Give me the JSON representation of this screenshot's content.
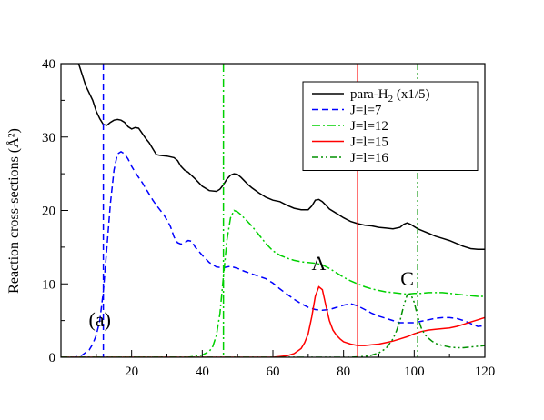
{
  "chart_data": {
    "type": "line",
    "title": "",
    "xlabel": "",
    "ylabel": "Reaction cross-sections (Å²)",
    "xlim": [
      0,
      120
    ],
    "ylim": [
      0,
      40
    ],
    "xticks": [
      20,
      40,
      60,
      80,
      100,
      120
    ],
    "yticks": [
      0,
      10,
      20,
      30,
      40
    ],
    "grid": false,
    "legend_position": "top-right",
    "annotations": [
      {
        "text": "A",
        "x": 73,
        "y": 11.9
      },
      {
        "text": "C",
        "x": 98,
        "y": 9.8
      },
      {
        "text": "(a)",
        "x": 11,
        "y": 4.2
      }
    ],
    "vertical_lines": [
      {
        "series": "J=l=7",
        "x": 12
      },
      {
        "series": "J=l=12",
        "x": 46
      },
      {
        "series": "J=l=15",
        "x": 84
      },
      {
        "series": "J=l=16",
        "x": 101
      }
    ],
    "series": [
      {
        "name": "para-H₂ (x1/5)",
        "legend_main": "para-H",
        "legend_sub": "2",
        "legend_suffix": " (x1/5)",
        "color": "#000000",
        "dash": "",
        "x": [
          5,
          7,
          9,
          10,
          11,
          12,
          13,
          14,
          15,
          16,
          17,
          18,
          19,
          20,
          21,
          22,
          23,
          24,
          25,
          26,
          27,
          28,
          30,
          32,
          33,
          34,
          35,
          36,
          38,
          40,
          42,
          44,
          45,
          46,
          47,
          48,
          49,
          50,
          51,
          52,
          53,
          54,
          56,
          58,
          60,
          62,
          64,
          66,
          68,
          70,
          71,
          72,
          73,
          74,
          75,
          76,
          78,
          80,
          82,
          84,
          86,
          88,
          90,
          92,
          94,
          96,
          97,
          98,
          99,
          100,
          101,
          102,
          104,
          106,
          108,
          110,
          112,
          114,
          116,
          118,
          120
        ],
        "y": [
          40,
          37,
          35,
          33.5,
          32.5,
          31.7,
          31.6,
          32,
          32.3,
          32.4,
          32.3,
          32,
          31.4,
          31.1,
          31.3,
          31.2,
          30.5,
          29.8,
          29.2,
          28.4,
          27.6,
          27.5,
          27.4,
          27.2,
          26.8,
          26,
          25.5,
          25.2,
          24.3,
          23.3,
          22.7,
          22.6,
          22.9,
          23.5,
          24.3,
          24.8,
          25,
          24.9,
          24.5,
          24,
          23.5,
          23.1,
          22.4,
          21.8,
          21.4,
          21.2,
          20.7,
          20.3,
          20.1,
          20.1,
          20.6,
          21.4,
          21.5,
          21.2,
          20.7,
          20.2,
          19.6,
          19,
          18.5,
          18.2,
          18,
          17.9,
          17.7,
          17.6,
          17.5,
          17.7,
          18.1,
          18.3,
          18.1,
          17.8,
          17.5,
          17.3,
          16.9,
          16.5,
          16.2,
          15.9,
          15.5,
          15.1,
          14.8,
          14.7,
          14.7
        ]
      },
      {
        "name": "J=l=7",
        "color": "#0000ff",
        "dash": "7,4",
        "x": [
          0,
          4,
          6,
          8,
          9,
          10,
          11,
          12,
          13,
          14,
          15,
          16,
          17,
          18,
          19,
          20,
          21,
          22,
          23,
          24,
          25,
          26,
          27,
          28,
          29,
          30,
          31,
          32,
          33,
          34,
          35,
          36,
          37,
          38,
          40,
          42,
          44,
          46,
          48,
          50,
          52,
          55,
          58,
          60,
          62,
          64,
          66,
          68,
          70,
          72,
          74,
          76,
          78,
          80,
          82,
          84,
          86,
          88,
          90,
          92,
          94,
          96,
          98,
          100,
          102,
          104,
          106,
          108,
          110,
          112,
          114,
          116,
          118,
          120
        ],
        "y": [
          0,
          0,
          0.3,
          1,
          1.8,
          3,
          5,
          9,
          15,
          21,
          25.5,
          27.7,
          28,
          27.7,
          27,
          26,
          25.2,
          24.5,
          23.8,
          23,
          22.2,
          21.4,
          20.7,
          20.1,
          19.5,
          18.7,
          17.8,
          16.4,
          15.6,
          15.4,
          15.6,
          15.9,
          15.8,
          15,
          13.9,
          12.9,
          12.3,
          12.2,
          12.4,
          12.1,
          11.7,
          11.2,
          10.7,
          10.1,
          9.3,
          8.6,
          7.9,
          7.3,
          6.8,
          6.5,
          6.4,
          6.5,
          6.8,
          7.1,
          7.3,
          7.0,
          6.5,
          6.0,
          5.6,
          5.3,
          5.0,
          4.7,
          4.7,
          4.7,
          4.9,
          5.1,
          5.3,
          5.4,
          5.4,
          5.3,
          5.0,
          4.6,
          4.2,
          4.3
        ]
      },
      {
        "name": "J=l=12",
        "color": "#00d000",
        "dash": "9,3,2,3",
        "x": [
          0,
          36,
          40,
          42,
          43,
          44,
          45,
          46,
          47,
          48,
          49,
          50,
          51,
          52,
          53,
          54,
          55,
          56,
          57,
          58,
          59,
          60,
          62,
          64,
          66,
          68,
          70,
          72,
          74,
          76,
          78,
          80,
          82,
          84,
          86,
          88,
          90,
          92,
          94,
          96,
          98,
          100,
          102,
          104,
          106,
          108,
          110,
          112,
          114,
          116,
          118,
          120
        ],
        "y": [
          0,
          0,
          0.3,
          0.8,
          1.5,
          3,
          6,
          11,
          16,
          19,
          20,
          19.8,
          19.4,
          18.9,
          18.4,
          17.9,
          17.3,
          16.7,
          16.1,
          15.5,
          15,
          14.5,
          13.9,
          13.5,
          13.2,
          13,
          12.9,
          12.8,
          12.6,
          12.1,
          11.5,
          10.9,
          10.4,
          10,
          9.6,
          9.3,
          9.1,
          8.9,
          8.8,
          8.7,
          8.6,
          8.7,
          8.7,
          8.8,
          8.8,
          8.8,
          8.7,
          8.6,
          8.5,
          8.4,
          8.3,
          8.3
        ]
      },
      {
        "name": "J=l=15",
        "color": "#ff0000",
        "dash": "",
        "x": [
          0,
          60,
          64,
          66,
          68,
          69,
          70,
          71,
          72,
          73,
          74,
          75,
          76,
          77,
          78,
          79,
          80,
          82,
          84,
          86,
          88,
          90,
          92,
          94,
          96,
          98,
          100,
          102,
          104,
          106,
          108,
          110,
          112,
          114,
          116,
          118,
          120
        ],
        "y": [
          0,
          0,
          0.2,
          0.5,
          1.2,
          2,
          3.2,
          5.5,
          8.3,
          9.6,
          9.2,
          7,
          5,
          3.7,
          3,
          2.5,
          2.1,
          1.8,
          1.6,
          1.6,
          1.7,
          1.8,
          2.0,
          2.2,
          2.5,
          2.8,
          3.2,
          3.5,
          3.7,
          3.8,
          3.9,
          4.0,
          4.2,
          4.5,
          4.8,
          5.1,
          5.4
        ]
      },
      {
        "name": "J=l=16",
        "color": "#009000",
        "dash": "7,3,2,3,2,3",
        "x": [
          0,
          82,
          86,
          88,
          90,
          92,
          94,
          95,
          96,
          97,
          98,
          99,
          100,
          101,
          102,
          103,
          104,
          105,
          106,
          108,
          110,
          112,
          114,
          116,
          118,
          120
        ],
        "y": [
          0,
          0,
          0.1,
          0.3,
          0.6,
          1.2,
          2.5,
          3.6,
          5,
          7,
          8.5,
          8.6,
          7.5,
          5.5,
          4,
          3.1,
          2.6,
          2.2,
          1.9,
          1.6,
          1.4,
          1.3,
          1.3,
          1.4,
          1.5,
          1.6
        ]
      }
    ]
  }
}
